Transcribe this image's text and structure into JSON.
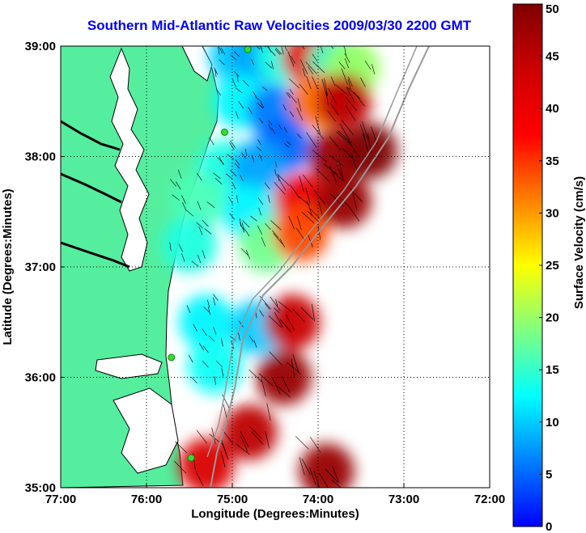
{
  "title": "Southern Mid-Atlantic Raw Velocities 2009/03/30 2200 GMT",
  "axes": {
    "xlabel": "Longitude (Degrees:Minutes)",
    "ylabel": "Latitude (Degrees:Minutes)",
    "x_ticks": [
      "77:00",
      "76:00",
      "75:00",
      "74:00",
      "73:00",
      "72:00"
    ],
    "y_ticks": [
      "39:00",
      "38:00",
      "37:00",
      "36:00",
      "35:00"
    ],
    "x_range_deg_west": [
      77,
      72
    ],
    "y_range_deg_north": [
      35,
      39
    ],
    "grid": "dotted"
  },
  "colorbar": {
    "label": "Surface Velocity (cm/s)",
    "ticks": [
      "50",
      "45",
      "40",
      "35",
      "30",
      "25",
      "20",
      "15",
      "10",
      "5",
      "0"
    ],
    "range": [
      0,
      50
    ],
    "colormap": "jet"
  },
  "colors": {
    "land": "#55ee9e",
    "water": "#ffffff",
    "title": "#0000ff",
    "coastline": "#000000",
    "shelf_contour": "#999999",
    "radar_site": "#33dd33"
  },
  "radar_sites": [
    {
      "lon": -74.82,
      "lat": 38.97
    },
    {
      "lon": -75.09,
      "lat": 38.22
    },
    {
      "lon": -75.71,
      "lat": 36.18
    },
    {
      "lon": -75.48,
      "lat": 35.27
    }
  ],
  "velocity_cells": [
    {
      "lon": -74.95,
      "lat": 38.9,
      "speed": 10
    },
    {
      "lon": -74.7,
      "lat": 38.9,
      "speed": 8
    },
    {
      "lon": -74.4,
      "lat": 38.9,
      "speed": 14
    },
    {
      "lon": -74.1,
      "lat": 38.9,
      "speed": 40
    },
    {
      "lon": -73.8,
      "lat": 38.85,
      "speed": 15
    },
    {
      "lon": -73.6,
      "lat": 38.8,
      "speed": 20
    },
    {
      "lon": -74.9,
      "lat": 38.5,
      "speed": 12
    },
    {
      "lon": -74.5,
      "lat": 38.4,
      "speed": 6
    },
    {
      "lon": -74.0,
      "lat": 38.5,
      "speed": 32
    },
    {
      "lon": -73.7,
      "lat": 38.5,
      "speed": 45
    },
    {
      "lon": -74.4,
      "lat": 38.1,
      "speed": 5
    },
    {
      "lon": -73.8,
      "lat": 38.0,
      "speed": 48
    },
    {
      "lon": -73.4,
      "lat": 38.05,
      "speed": 50
    },
    {
      "lon": -75.1,
      "lat": 37.9,
      "speed": 14
    },
    {
      "lon": -74.7,
      "lat": 37.9,
      "speed": 8
    },
    {
      "lon": -75.4,
      "lat": 37.6,
      "speed": 16
    },
    {
      "lon": -74.8,
      "lat": 37.5,
      "speed": 12
    },
    {
      "lon": -74.2,
      "lat": 37.6,
      "speed": 40
    },
    {
      "lon": -73.7,
      "lat": 37.6,
      "speed": 48
    },
    {
      "lon": -75.5,
      "lat": 37.2,
      "speed": 14
    },
    {
      "lon": -74.6,
      "lat": 37.2,
      "speed": 18
    },
    {
      "lon": -74.2,
      "lat": 37.3,
      "speed": 34
    },
    {
      "lon": -75.3,
      "lat": 36.5,
      "speed": 12
    },
    {
      "lon": -74.7,
      "lat": 36.45,
      "speed": 10
    },
    {
      "lon": -74.3,
      "lat": 36.5,
      "speed": 44
    },
    {
      "lon": -75.2,
      "lat": 36.1,
      "speed": 13
    },
    {
      "lon": -74.4,
      "lat": 36.0,
      "speed": 48
    },
    {
      "lon": -74.8,
      "lat": 35.5,
      "speed": 45
    },
    {
      "lon": -75.3,
      "lat": 35.2,
      "speed": 42
    },
    {
      "lon": -73.9,
      "lat": 35.15,
      "speed": 48
    }
  ]
}
